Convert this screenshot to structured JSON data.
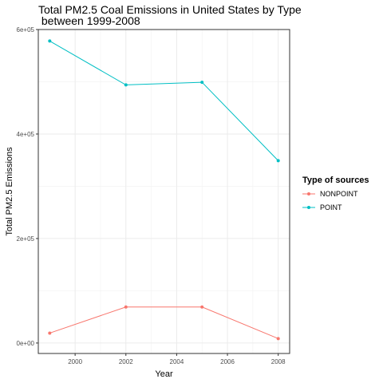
{
  "chart_data": {
    "type": "line",
    "title_line1": "Total PM2.5 Coal Emissions in United States by Type",
    "title_line2": " between 1999-2008",
    "xlabel": "Year",
    "ylabel": "Total PM2.5 Emissions",
    "x": [
      1999,
      2002,
      2005,
      2008
    ],
    "xlim": [
      1998.55,
      2008.45
    ],
    "ylim": [
      -20000,
      600000
    ],
    "x_ticks": [
      2000,
      2002,
      2004,
      2006,
      2008
    ],
    "x_tick_labels": [
      "2000",
      "2002",
      "2004",
      "2006",
      "2008"
    ],
    "y_ticks": [
      0,
      200000,
      400000,
      600000
    ],
    "y_tick_labels": [
      "0e+00",
      "2e+05",
      "4e+05",
      "6e+05"
    ],
    "grid": true,
    "legend_title": "Type of sources",
    "legend_position": "right",
    "series": [
      {
        "name": "NONPOINT",
        "color": "#F8766D",
        "values": [
          19000,
          69000,
          69000,
          8500
        ]
      },
      {
        "name": "POINT",
        "color": "#00BFC4",
        "values": [
          578000,
          494000,
          499000,
          349000
        ]
      }
    ]
  }
}
